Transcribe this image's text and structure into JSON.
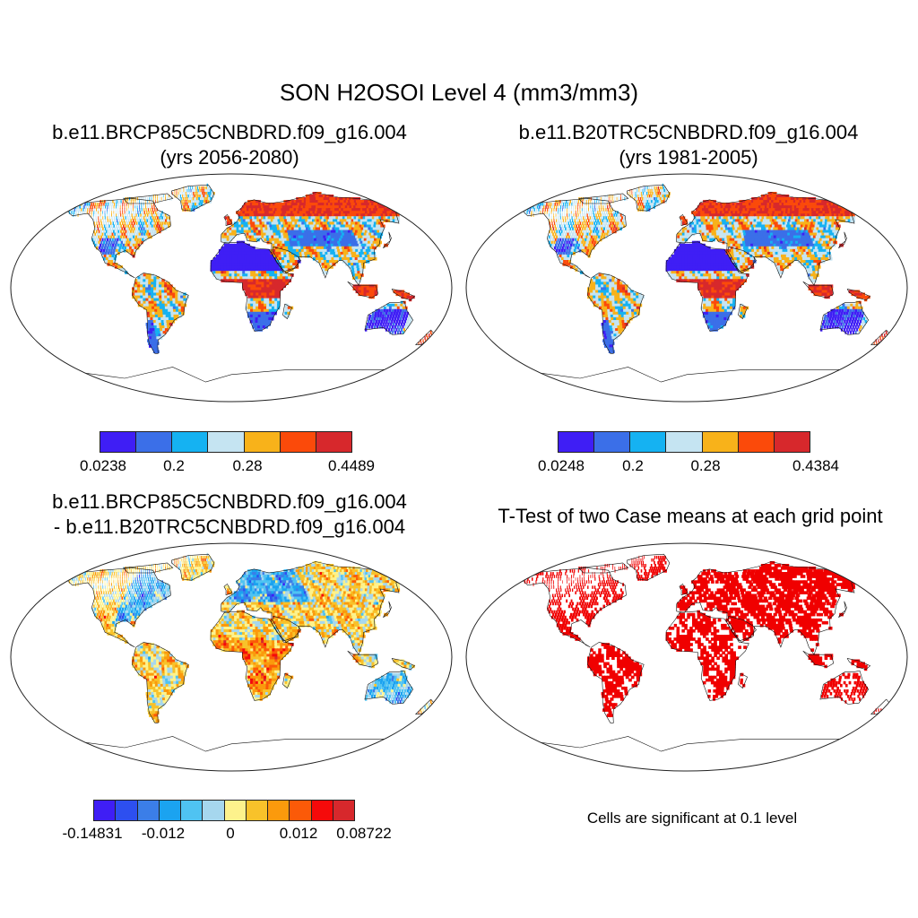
{
  "title": "SON H2OSOI Level 4 (mm3/mm3)",
  "panels": [
    {
      "title_line1": "b.e11.BRCP85C5CNBDRD.f09_g16.004",
      "title_line2": "(yrs 2056-2080)",
      "colorbar": {
        "colors": [
          "#3f1ef5",
          "#3b6fe8",
          "#15b2f2",
          "#c5e4f2",
          "#f8b21a",
          "#fb4a0a",
          "#d7282c"
        ],
        "tick_labels": [
          "0.0238",
          "0.2",
          "0.28",
          "0.4489"
        ]
      }
    },
    {
      "title_line1": "b.e11.B20TRC5CNBDRD.f09_g16.004",
      "title_line2": "(yrs 1981-2005)",
      "colorbar": {
        "colors": [
          "#3f1ef5",
          "#3b6fe8",
          "#15b2f2",
          "#c5e4f2",
          "#f8b21a",
          "#fb4a0a",
          "#d7282c"
        ],
        "tick_labels": [
          "0.0248",
          "0.2",
          "0.28",
          "0.4384"
        ]
      }
    },
    {
      "title_line1": "b.e11.BRCP85C5CNBDRD.f09_g16.004",
      "title_line2": "- b.e11.B20TRC5CNBDRD.f09_g16.004",
      "colorbar": {
        "colors": [
          "#3f1ef5",
          "#2d4ff0",
          "#3b7ee8",
          "#1ba3f0",
          "#4fc3f2",
          "#a6d7ee",
          "#fdf28c",
          "#f8c22a",
          "#fb9a0c",
          "#fb5a08",
          "#f50a0a",
          "#d7282c"
        ],
        "tick_labels": [
          "-0.14831",
          "-0.012",
          "0",
          "0.012",
          "0.08722"
        ]
      }
    },
    {
      "title_line1": "T-Test of two Case means at each grid point",
      "note": "Cells are significant at 0.1 level",
      "mask_color": "#f00000"
    }
  ]
}
